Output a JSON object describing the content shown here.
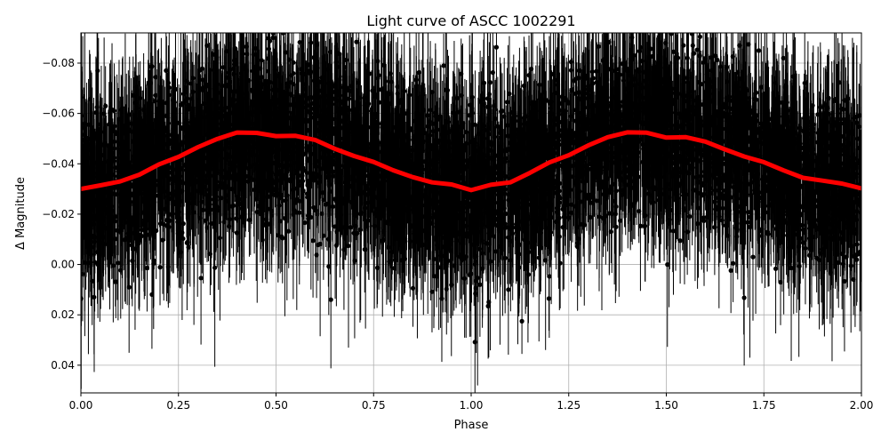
{
  "chart_data": {
    "type": "scatter",
    "title": "Light curve of ASCC 1002291",
    "xlabel": "Phase",
    "ylabel": "Δ Magnitude",
    "xlim": [
      0,
      2
    ],
    "ylim": [
      0.051,
      -0.092
    ],
    "y_inverted": true,
    "grid": true,
    "x_ticks": [
      "0.00",
      "0.25",
      "0.50",
      "0.75",
      "1.00",
      "1.25",
      "1.50",
      "1.75",
      "2.00"
    ],
    "y_ticks": [
      "−0.08",
      "−0.06",
      "−0.04",
      "−0.02",
      "0.00",
      "0.02",
      "0.04"
    ],
    "series": [
      {
        "kind": "errorbar-points",
        "color": "#000000",
        "note_visible": false
      },
      {
        "kind": "binned-mean-line",
        "color": "#ff0000",
        "x": [
          0,
          0.05,
          0.1,
          0.15,
          0.2,
          0.25,
          0.3,
          0.35,
          0.4,
          0.45,
          0.5,
          0.55,
          0.6,
          0.65,
          0.7,
          0.75,
          0.8,
          0.85,
          0.9,
          0.95,
          1.0,
          1.05,
          1.1,
          1.15,
          1.2,
          1.25,
          1.3,
          1.35,
          1.4,
          1.45,
          1.5,
          1.55,
          1.6,
          1.65,
          1.7,
          1.75,
          1.8,
          1.85,
          1.9,
          1.95,
          2.0
        ],
        "y": [
          -0.03,
          -0.032,
          -0.033,
          -0.036,
          -0.04,
          -0.043,
          -0.047,
          -0.05,
          -0.052,
          -0.052,
          -0.051,
          -0.051,
          -0.049,
          -0.046,
          -0.043,
          -0.041,
          -0.038,
          -0.035,
          -0.033,
          -0.032,
          -0.03,
          -0.032,
          -0.033,
          -0.036,
          -0.04,
          -0.043,
          -0.047,
          -0.05,
          -0.052,
          -0.052,
          -0.051,
          -0.051,
          -0.049,
          -0.046,
          -0.043,
          -0.041,
          -0.038,
          -0.035,
          -0.033,
          -0.032,
          -0.03
        ]
      }
    ]
  }
}
